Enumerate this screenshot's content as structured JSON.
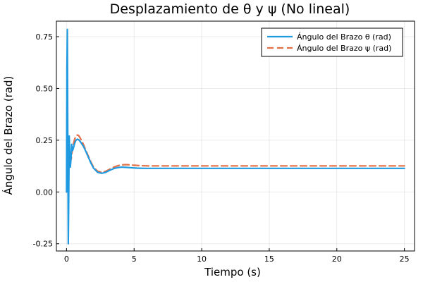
{
  "chart_data": {
    "type": "line",
    "title": "Desplazamiento de θ y ψ (No lineal)",
    "xlabel": "Tiempo (s)",
    "ylabel": "Ángulo del Brazo (rad)",
    "xlim": [
      -0.75,
      25.75
    ],
    "ylim": [
      -0.285,
      0.825
    ],
    "xticks": [
      0,
      5,
      10,
      15,
      20,
      25
    ],
    "xtick_labels": [
      "0",
      "5",
      "10",
      "15",
      "20",
      "25"
    ],
    "yticks": [
      -0.25,
      0,
      0.25,
      0.5,
      0.75
    ],
    "ytick_labels": [
      "-0.25",
      "0.00",
      "0.25",
      "0.50",
      "0.75"
    ],
    "grid": true,
    "legend_position": "top-right",
    "series": [
      {
        "name": "Ángulo del Brazo θ (rad)",
        "color": "#1f9ae0",
        "dash": "solid",
        "x": [
          0.0,
          0.03,
          0.06,
          0.09,
          0.13,
          0.16,
          0.2,
          0.24,
          0.28,
          0.33,
          0.38,
          0.45,
          0.5,
          0.6,
          0.7,
          0.8,
          0.9,
          1.0,
          1.1,
          1.25,
          1.4,
          1.6,
          1.8,
          2.0,
          2.3,
          2.6,
          2.9,
          3.2,
          3.5,
          3.8,
          4.1,
          4.4,
          4.8,
          5.2,
          5.8,
          6.5,
          7.5,
          9.0,
          11.0,
          14.0,
          18.0,
          22.0,
          25.0
        ],
        "y": [
          0.0,
          0.6,
          0.785,
          0.3,
          -0.25,
          -0.05,
          0.27,
          0.18,
          0.12,
          0.16,
          0.23,
          0.2,
          0.21,
          0.235,
          0.25,
          0.255,
          0.252,
          0.245,
          0.235,
          0.22,
          0.2,
          0.17,
          0.14,
          0.115,
          0.095,
          0.09,
          0.095,
          0.105,
          0.113,
          0.118,
          0.12,
          0.119,
          0.117,
          0.115,
          0.114,
          0.114,
          0.114,
          0.114,
          0.114,
          0.114,
          0.114,
          0.114,
          0.114
        ]
      },
      {
        "name": "Ángulo del Brazo ψ (rad)",
        "color": "#e26f46",
        "dash": "dashed",
        "x": [
          0.0,
          0.05,
          0.1,
          0.15,
          0.2,
          0.25,
          0.3,
          0.35,
          0.4,
          0.5,
          0.6,
          0.7,
          0.8,
          0.9,
          1.0,
          1.1,
          1.25,
          1.4,
          1.6,
          1.8,
          2.0,
          2.3,
          2.6,
          2.9,
          3.2,
          3.5,
          3.8,
          4.1,
          4.4,
          4.7,
          5.0,
          5.5,
          6.0,
          7.0,
          9.0,
          12.0,
          16.0,
          20.0,
          25.0
        ],
        "y": [
          0.0,
          0.04,
          0.12,
          0.18,
          0.2,
          0.17,
          0.15,
          0.16,
          0.19,
          0.23,
          0.255,
          0.27,
          0.275,
          0.272,
          0.262,
          0.25,
          0.23,
          0.205,
          0.175,
          0.145,
          0.12,
          0.1,
          0.095,
          0.1,
          0.11,
          0.12,
          0.127,
          0.131,
          0.132,
          0.131,
          0.129,
          0.127,
          0.126,
          0.126,
          0.126,
          0.126,
          0.126,
          0.126,
          0.126
        ]
      }
    ]
  }
}
